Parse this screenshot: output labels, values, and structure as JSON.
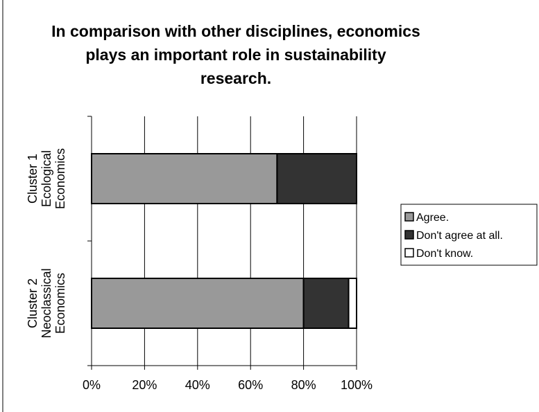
{
  "chart_data": {
    "type": "bar",
    "orientation": "horizontal",
    "stacked": "percent",
    "title_lines": [
      "In comparison with other disciplines, economics",
      "plays an important role in sustainability",
      "research."
    ],
    "categories": [
      [
        "Cluster 1",
        "Ecological",
        "Economics"
      ],
      [
        "Cluster 2",
        "Neoclassical",
        "Economics"
      ]
    ],
    "series": [
      {
        "name": "Agree.",
        "values": [
          70,
          80
        ],
        "color": "#999999"
      },
      {
        "name": "Don't agree at all.",
        "values": [
          30,
          17
        ],
        "color": "#333333"
      },
      {
        "name": "Don't know.",
        "values": [
          0,
          3
        ],
        "color": "#ffffff"
      }
    ],
    "xlim": [
      0,
      100
    ],
    "x_ticks": [
      "0%",
      "20%",
      "40%",
      "60%",
      "80%",
      "100%"
    ],
    "grid": "vertical",
    "legend_position": "right"
  }
}
